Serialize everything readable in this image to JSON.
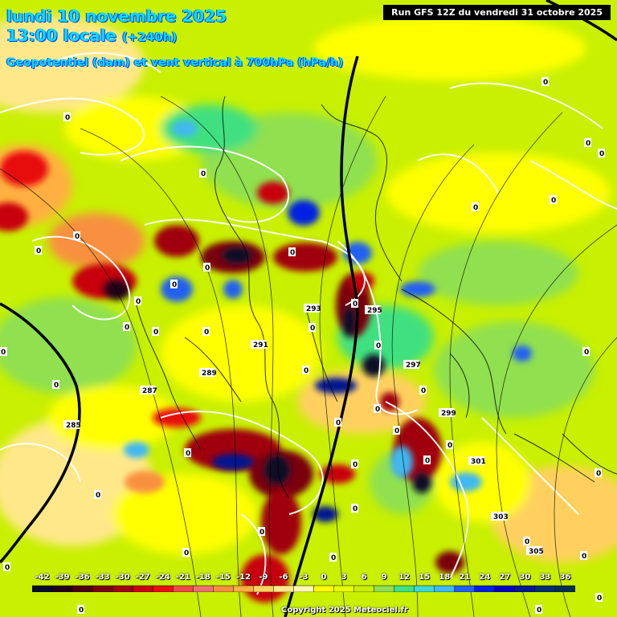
{
  "header": {
    "date_line": "lundi 10 novembre 2025",
    "time_line": "13:00 locale",
    "lead": "(+240h)",
    "parameter": "Geopotentiel (dam) et vent vertical à 700hPa (hPa/h)",
    "run": "Run GFS 12Z du vendredi 31 octobre 2025"
  },
  "legend": {
    "values": [
      "-42",
      "-39",
      "-36",
      "-33",
      "-30",
      "-27",
      "-24",
      "-21",
      "-18",
      "-15",
      "-12",
      "-9",
      "-6",
      "-3",
      "0",
      "3",
      "6",
      "9",
      "12",
      "15",
      "18",
      "21",
      "24",
      "27",
      "30",
      "33",
      "36"
    ],
    "colors": [
      "#0a0a28",
      "#200012",
      "#4a0010",
      "#7a0010",
      "#a00010",
      "#c80010",
      "#e81010",
      "#f04848",
      "#f07070",
      "#f89040",
      "#ffb040",
      "#ffd060",
      "#ffe88a",
      "#fff8b0",
      "#ffff00",
      "#e8ff00",
      "#c8f000",
      "#90e050",
      "#40e080",
      "#40d8d0",
      "#40b8f0",
      "#2060f0",
      "#0020e0",
      "#0000c0",
      "#001890",
      "#003070",
      "#003050"
    ]
  },
  "contours": {
    "labels": [
      "285",
      "287",
      "289",
      "291",
      "293",
      "295",
      "297",
      "299",
      "301",
      "303",
      "305"
    ],
    "zero_label": "0"
  },
  "footer": {
    "copyright": "Copyright 2025 Meteociel.fr"
  },
  "icons": {
    "map": "weather-map-icon"
  }
}
